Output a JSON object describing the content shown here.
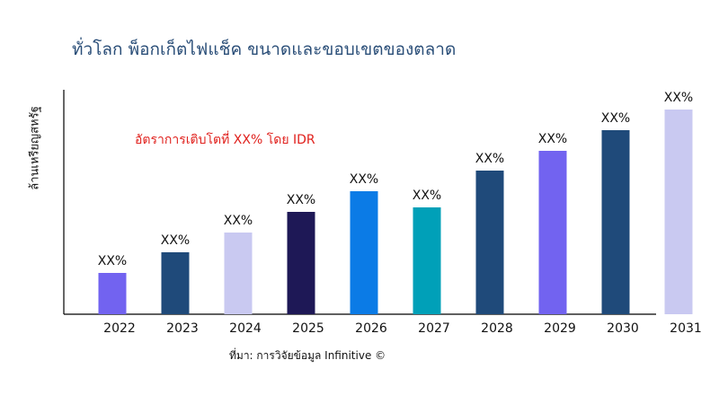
{
  "chart_data": {
    "type": "bar",
    "title": "ทั่วโลก พ็อกเก็ตไฟแช็ค ขนาดและขอบเขตของตลาด",
    "ylabel": "ล้านเหรียญสหรัฐ",
    "xlabel": "",
    "annotation": "อัตราการเติบโตที่ XX% โดย IDR",
    "source": "ที่มา: การวิจัยข้อมูล Infinitive ©",
    "categories": [
      "2022",
      "2023",
      "2024",
      "2025",
      "2026",
      "2027",
      "2028",
      "2029",
      "2030",
      "2031"
    ],
    "values": [
      46,
      69,
      91,
      114,
      137,
      119,
      160,
      182,
      205,
      228
    ],
    "data_labels": [
      "XX%",
      "XX%",
      "XX%",
      "XX%",
      "XX%",
      "XX%",
      "XX%",
      "XX%",
      "XX%",
      "XX%"
    ],
    "colors": [
      "#7263f0",
      "#1f4a7a",
      "#c9c9f1",
      "#1e1856",
      "#0b7be6",
      "#00a0b8",
      "#1f4a7a",
      "#7263f0",
      "#1f4a7a",
      "#c9c9f1"
    ],
    "ylim": [
      0,
      250
    ],
    "grid": false,
    "y_ticks_shown": false
  }
}
